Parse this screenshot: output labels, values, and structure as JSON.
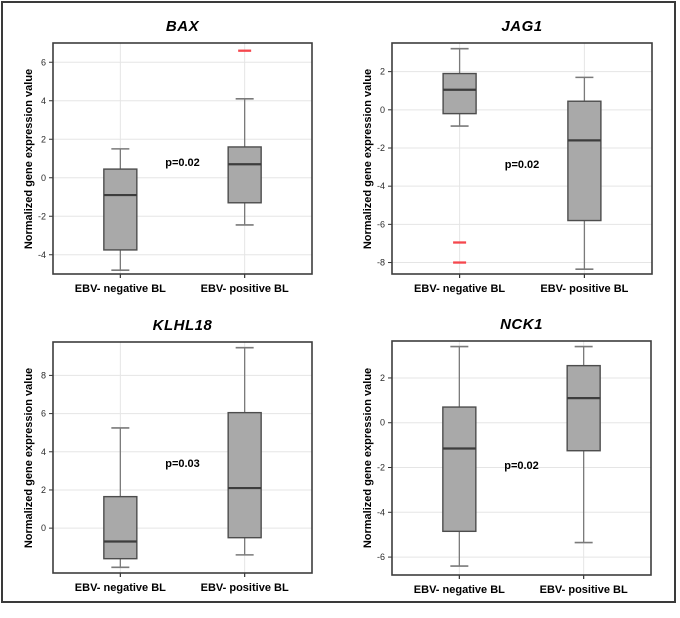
{
  "figure": {
    "background": "#ffffff",
    "border_color": "#3a3a3a"
  },
  "styles": {
    "box_fill": "#a9a9a9",
    "box_border": "#4d4d4d",
    "median_color": "#3d3d3d",
    "whisker_color": "#7a7a7a",
    "outlier_color": "#f5474d",
    "grid_color": "#e5e5e5",
    "frame_color": "#3d3d3d",
    "tick_color": "#333333",
    "tick_label_color": "#2a2a2a"
  },
  "chart_data": [
    {
      "type": "box",
      "title": "BAX",
      "ylabel": "Normalized gene expression value",
      "xlabel": "",
      "categories": [
        "EBV- negative BL",
        "EBV- positive BL"
      ],
      "p_label": "p=0.02",
      "p_y": 0.75,
      "grid": true,
      "yticks": [
        6,
        4,
        2,
        0,
        -2,
        -4
      ],
      "ylim": [
        -5.0,
        7.0
      ],
      "series": [
        {
          "name": "EBV- negative BL",
          "whisker_low": -4.8,
          "q1": -3.75,
          "median": -0.9,
          "q3": 0.45,
          "whisker_high": 1.5,
          "outliers": []
        },
        {
          "name": "EBV- positive BL",
          "whisker_low": -2.45,
          "q1": -1.3,
          "median": 0.7,
          "q3": 1.6,
          "whisker_high": 4.1,
          "outliers": [
            6.6
          ]
        }
      ]
    },
    {
      "type": "box",
      "title": "JAG1",
      "ylabel": "Normalized gene expression value",
      "xlabel": "",
      "categories": [
        "EBV- negative BL",
        "EBV- positive BL"
      ],
      "p_label": "p=0.02",
      "p_y": -2.9,
      "grid": true,
      "yticks": [
        2,
        0,
        -2,
        -4,
        -6,
        -8
      ],
      "ylim": [
        -8.6,
        3.5
      ],
      "series": [
        {
          "name": "EBV- negative BL",
          "whisker_low": -0.85,
          "q1": -0.2,
          "median": 1.05,
          "q3": 1.9,
          "whisker_high": 3.2,
          "outliers": [
            -6.95,
            -8.0
          ]
        },
        {
          "name": "EBV- positive BL",
          "whisker_low": -8.35,
          "q1": -5.8,
          "median": -1.6,
          "q3": 0.45,
          "whisker_high": 1.7,
          "outliers": []
        }
      ]
    },
    {
      "type": "box",
      "title": "KLHL18",
      "ylabel": "Normalized gene expression value",
      "xlabel": "",
      "categories": [
        "EBV- negative BL",
        "EBV- positive BL"
      ],
      "p_label": "p=0.03",
      "p_y": 3.35,
      "grid": true,
      "yticks": [
        8,
        6,
        4,
        2,
        0
      ],
      "ylim": [
        -2.35,
        9.75
      ],
      "series": [
        {
          "name": "EBV- negative BL",
          "whisker_low": -2.05,
          "q1": -1.6,
          "median": -0.7,
          "q3": 1.65,
          "whisker_high": 5.25,
          "outliers": []
        },
        {
          "name": "EBV- positive BL",
          "whisker_low": -1.4,
          "q1": -0.5,
          "median": 2.1,
          "q3": 6.05,
          "whisker_high": 9.45,
          "outliers": []
        }
      ]
    },
    {
      "type": "box",
      "title": "NCK1",
      "ylabel": "Normalized gene expression value",
      "xlabel": "",
      "categories": [
        "EBV- negative BL",
        "EBV- positive BL"
      ],
      "p_label": "p=0.02",
      "p_y": -1.95,
      "grid": true,
      "yticks": [
        2,
        0,
        -2,
        -4,
        -6
      ],
      "ylim": [
        -6.8,
        3.65
      ],
      "series": [
        {
          "name": "EBV- negative BL",
          "whisker_low": -6.4,
          "q1": -4.85,
          "median": -1.15,
          "q3": 0.7,
          "whisker_high": 3.4,
          "outliers": []
        },
        {
          "name": "EBV- positive BL",
          "whisker_low": -5.35,
          "q1": -1.25,
          "median": 1.1,
          "q3": 2.55,
          "whisker_high": 3.4,
          "outliers": []
        }
      ]
    }
  ]
}
